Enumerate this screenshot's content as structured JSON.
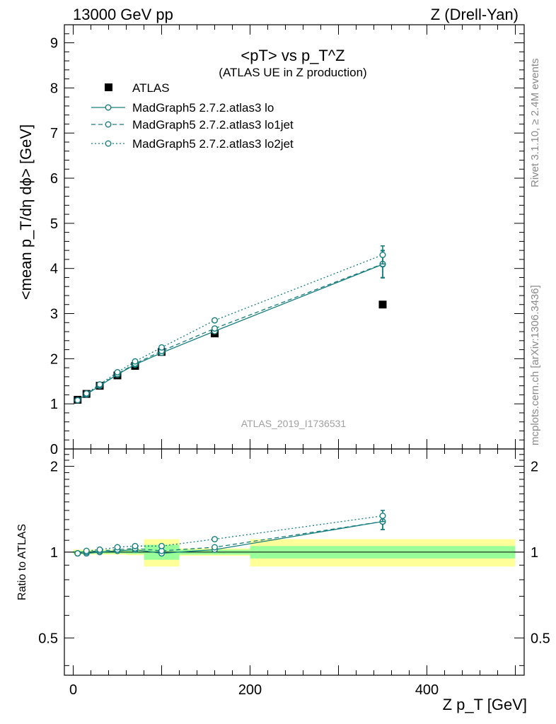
{
  "header": {
    "left": "13000 GeV pp",
    "right": "Z (Drell-Yan)"
  },
  "side_labels": {
    "rivet": "Rivet 3.1.10, ≥ 2.4M events",
    "mcplots": "mcplots.cern.ch [arXiv:1306.3436]"
  },
  "colors": {
    "mc": "#177d7f",
    "data": "#000000",
    "band_inner": "#99ff99",
    "band_outer": "#ffff99"
  },
  "chart_data": [
    {
      "type": "scatter",
      "panel": "main",
      "title": "<pT> vs p_T^Z",
      "title_note": "(ATLAS UE in Z production)",
      "analysis_label": "ATLAS_2019_I1736531",
      "ylabel": "<mean p_T/dη dϕ> [GeV]",
      "xlim": [
        -10,
        510
      ],
      "ylim": [
        0,
        9.4
      ],
      "yticks": [
        0,
        1,
        2,
        3,
        4,
        5,
        6,
        7,
        8,
        9
      ],
      "legend_position": "top-left",
      "x": [
        5,
        15,
        30,
        50,
        70,
        100,
        160,
        350
      ],
      "series": [
        {
          "name": "ATLAS",
          "style": "data",
          "values": [
            1.09,
            1.22,
            1.4,
            1.63,
            1.84,
            2.15,
            2.56,
            3.2
          ]
        },
        {
          "name": "MadGraph5 2.7.2.atlas3 lo",
          "style": "solid",
          "values": [
            1.08,
            1.21,
            1.4,
            1.65,
            1.87,
            2.13,
            2.61,
            4.09
          ],
          "err_last": 0.3
        },
        {
          "name": "MadGraph5 2.7.2.atlas3 lo1jet",
          "style": "dashed",
          "values": [
            1.08,
            1.22,
            1.41,
            1.66,
            1.89,
            2.17,
            2.67,
            4.1
          ],
          "err_last": 0.3
        },
        {
          "name": "MadGraph5 2.7.2.atlas3 lo2jet",
          "style": "dotted",
          "values": [
            1.08,
            1.23,
            1.43,
            1.7,
            1.94,
            2.25,
            2.85,
            4.3
          ],
          "err_last": 0.2
        }
      ]
    },
    {
      "type": "scatter",
      "panel": "ratio",
      "xlabel": "Z p_T [GeV]",
      "ylabel": "Ratio to ATLAS",
      "ylim": [
        0.37,
        2.3
      ],
      "yticks": [
        0.5,
        1,
        2
      ],
      "xticks": [
        0,
        200,
        400
      ],
      "reference": 1,
      "bins": [
        {
          "x": [
            0,
            10
          ],
          "stat": 0.012,
          "tot": 0.02
        },
        {
          "x": [
            10,
            20
          ],
          "stat": 0.012,
          "tot": 0.02
        },
        {
          "x": [
            20,
            40
          ],
          "stat": 0.012,
          "tot": 0.02
        },
        {
          "x": [
            40,
            60
          ],
          "stat": 0.012,
          "tot": 0.02
        },
        {
          "x": [
            60,
            80
          ],
          "stat": 0.015,
          "tot": 0.025
        },
        {
          "x": [
            80,
            120
          ],
          "stat": 0.06,
          "tot": 0.11
        },
        {
          "x": [
            120,
            200
          ],
          "stat": 0.02,
          "tot": 0.03
        },
        {
          "x": [
            200,
            500
          ],
          "stat": 0.05,
          "tot": 0.11
        }
      ],
      "x": [
        5,
        15,
        30,
        50,
        70,
        100,
        160,
        350
      ],
      "series": [
        {
          "name": "MadGraph5 2.7.2.atlas3 lo",
          "style": "solid",
          "values": [
            0.99,
            0.99,
            1.0,
            1.01,
            1.02,
            0.99,
            1.02,
            1.28
          ],
          "err_last": 0.08
        },
        {
          "name": "MadGraph5 2.7.2.atlas3 lo1jet",
          "style": "dashed",
          "values": [
            0.99,
            1.0,
            1.01,
            1.02,
            1.03,
            1.01,
            1.04,
            1.28
          ],
          "err_last": 0.08
        },
        {
          "name": "MadGraph5 2.7.2.atlas3 lo2jet",
          "style": "dotted",
          "values": [
            0.99,
            1.01,
            1.02,
            1.04,
            1.05,
            1.05,
            1.11,
            1.34
          ],
          "err_last": 0.06
        }
      ]
    }
  ]
}
